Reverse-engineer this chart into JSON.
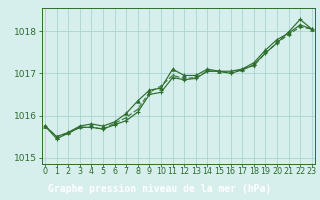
{
  "x": [
    0,
    1,
    2,
    3,
    4,
    5,
    6,
    7,
    8,
    9,
    10,
    11,
    12,
    13,
    14,
    15,
    16,
    17,
    18,
    19,
    20,
    21,
    22,
    23
  ],
  "line1": [
    1015.75,
    1015.5,
    1015.6,
    1015.75,
    1015.8,
    1015.75,
    1015.85,
    1016.05,
    1016.35,
    1016.6,
    1016.65,
    1017.1,
    1016.95,
    1016.95,
    1017.1,
    1017.05,
    1017.05,
    1017.1,
    1017.25,
    1017.55,
    1017.8,
    1017.95,
    1018.15,
    1018.05
  ],
  "line2": [
    1015.75,
    1015.45,
    1015.58,
    1015.72,
    1015.72,
    1015.68,
    1015.78,
    1015.88,
    1016.08,
    1016.5,
    1016.55,
    1016.9,
    1016.85,
    1016.88,
    1017.05,
    1017.05,
    1017.0,
    1017.08,
    1017.2,
    1017.48,
    1017.72,
    1017.98,
    1018.28,
    1018.05
  ],
  "line3": [
    1015.75,
    1015.5,
    1015.58,
    1015.72,
    1015.72,
    1015.68,
    1015.82,
    1015.95,
    1016.15,
    1016.55,
    1016.7,
    1016.95,
    1016.88,
    1016.9,
    1017.05,
    1017.05,
    1017.0,
    1017.1,
    1017.18,
    1017.48,
    1017.72,
    1017.92,
    1018.1,
    1018.05
  ],
  "line_color": "#2d6e2d",
  "line_color2": "#3a7a3a",
  "bg_color": "#d6eeec",
  "grid_color": "#aad4d0",
  "xlabel": "Graphe pression niveau de la mer (hPa)",
  "xlabel_bg": "#2d6e2d",
  "xlabel_color": "#ffffff",
  "yticks": [
    1015,
    1016,
    1017,
    1018
  ],
  "ylim": [
    1014.85,
    1018.55
  ],
  "xlim": [
    -0.3,
    23.3
  ],
  "xtick_labels": [
    "0",
    "1",
    "2",
    "3",
    "4",
    "5",
    "6",
    "7",
    "8",
    "9",
    "10",
    "11",
    "12",
    "13",
    "14",
    "15",
    "16",
    "17",
    "18",
    "19",
    "20",
    "21",
    "22",
    "23"
  ],
  "tick_fontsize": 5.8,
  "xlabel_fontsize": 7.0,
  "ytick_fontsize": 6.5
}
